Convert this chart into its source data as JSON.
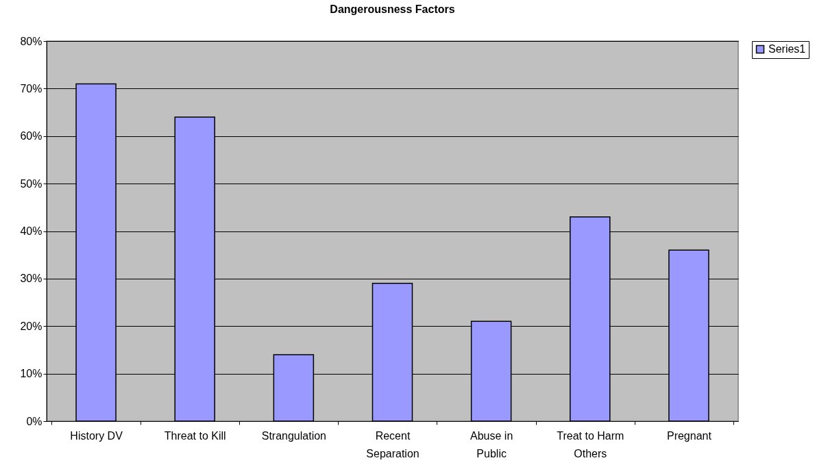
{
  "chart_data": {
    "type": "bar",
    "title": "Dangerousness Factors",
    "categories": [
      "History DV",
      "Threat to Kill",
      "Strangulation",
      "Recent Separation",
      "Abuse in Public",
      "Treat to Harm Others",
      "Pregnant"
    ],
    "series": [
      {
        "name": "Series1",
        "color": "#9999ff",
        "values": [
          71,
          64,
          14,
          29,
          21,
          43,
          36
        ]
      }
    ],
    "ylim": [
      0,
      80
    ],
    "yticks": [
      {
        "value": 0,
        "label": "0%"
      },
      {
        "value": 10,
        "label": "10%"
      },
      {
        "value": 20,
        "label": "20%"
      },
      {
        "value": 30,
        "label": "30%"
      },
      {
        "value": 40,
        "label": "40%"
      },
      {
        "value": 50,
        "label": "50%"
      },
      {
        "value": 60,
        "label": "60%"
      },
      {
        "value": 70,
        "label": "70%"
      },
      {
        "value": 80,
        "label": "80%"
      }
    ],
    "grid": "y",
    "legend": "right"
  }
}
